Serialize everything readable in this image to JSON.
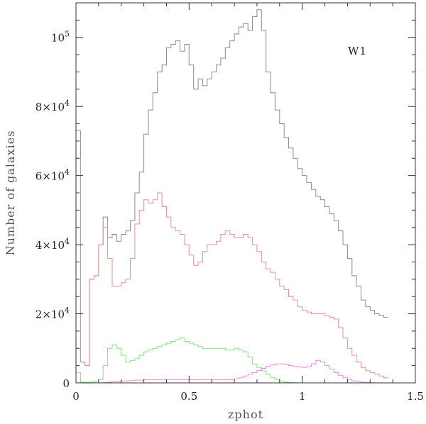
{
  "chart_data": {
    "type": "line",
    "style": "step-histogram",
    "xlabel": "zphot",
    "ylabel": "Number of galaxies",
    "annotation": "W1",
    "xlim": [
      0,
      1.5
    ],
    "ylim": [
      0,
      110000
    ],
    "x_ticks": [
      {
        "value": 0,
        "label": "0"
      },
      {
        "value": 0.5,
        "label": "0.5"
      },
      {
        "value": 1,
        "label": "1"
      },
      {
        "value": 1.5,
        "label": "1.5"
      }
    ],
    "y_ticks": [
      {
        "value": 0,
        "mant": "0",
        "exp": ""
      },
      {
        "value": 20000,
        "mant": "2×10",
        "exp": "4"
      },
      {
        "value": 40000,
        "mant": "4×10",
        "exp": "4"
      },
      {
        "value": 60000,
        "mant": "6×10",
        "exp": "4"
      },
      {
        "value": 80000,
        "mant": "8×10",
        "exp": "4"
      },
      {
        "value": 100000,
        "mant": "10",
        "exp": "5"
      }
    ],
    "bin_width": 0.02,
    "series": [
      {
        "color": "#8a8a8a",
        "values": [
          73000,
          6000,
          5000,
          30000,
          31000,
          40000,
          48000,
          42000,
          43000,
          41000,
          43000,
          44000,
          47000,
          55000,
          61000,
          72000,
          79000,
          84000,
          90000,
          92000,
          97000,
          98000,
          99000,
          96000,
          98000,
          92000,
          85000,
          88000,
          86000,
          88000,
          90000,
          92000,
          94000,
          97000,
          99000,
          101000,
          103000,
          104000,
          102000,
          106000,
          108000,
          102000,
          90000,
          84000,
          79000,
          75000,
          71000,
          68000,
          65000,
          62000,
          60000,
          58000,
          56000,
          54000,
          53000,
          51000,
          49000,
          47000,
          44000,
          40000,
          36000,
          31000,
          28000,
          24000,
          22000,
          21000,
          20000,
          19500,
          19000
        ]
      },
      {
        "color": "#ee8f8f",
        "values": [
          65000,
          6000,
          5000,
          30000,
          31000,
          40000,
          45000,
          36000,
          28000,
          28000,
          29000,
          30000,
          36000,
          46000,
          50000,
          53000,
          52000,
          53000,
          55000,
          51000,
          48000,
          45000,
          44000,
          43000,
          40000,
          37000,
          34000,
          35000,
          38000,
          40000,
          40000,
          41000,
          43000,
          44000,
          43000,
          42000,
          42000,
          43000,
          42000,
          40000,
          38000,
          35000,
          33000,
          32000,
          30000,
          28000,
          27000,
          25000,
          24000,
          22000,
          21000,
          20500,
          20000,
          20000,
          20000,
          19500,
          19000,
          18500,
          16000,
          13000,
          10000,
          8000,
          6000,
          4500,
          3500,
          3000,
          2500,
          2000,
          1500
        ]
      },
      {
        "color": "#7ce87c",
        "values": [
          3000,
          200,
          200,
          200,
          500,
          1000,
          5000,
          10000,
          11000,
          10000,
          8000,
          6000,
          6500,
          7000,
          8000,
          9000,
          9500,
          10000,
          10500,
          11000,
          11500,
          12000,
          12500,
          13000,
          12000,
          11500,
          11000,
          10500,
          10000,
          10000,
          10000,
          10000,
          10000,
          9500,
          9500,
          10000,
          9500,
          9000,
          7500,
          5500,
          4500,
          3500,
          2500,
          1500,
          1000,
          500,
          200,
          100,
          50,
          0,
          0,
          0,
          0,
          0,
          0,
          0,
          0,
          0,
          0,
          0,
          0,
          0,
          0,
          0,
          0,
          0,
          0,
          0,
          0
        ]
      },
      {
        "color": "#e08ee0",
        "values": [
          0,
          0,
          0,
          0,
          0,
          0,
          100,
          200,
          300,
          400,
          500,
          600,
          700,
          800,
          800,
          900,
          900,
          900,
          900,
          900,
          900,
          900,
          900,
          900,
          900,
          900,
          900,
          900,
          900,
          900,
          900,
          900,
          900,
          900,
          1000,
          1200,
          1500,
          2000,
          2500,
          3000,
          3600,
          4200,
          4800,
          5200,
          5500,
          5500,
          5300,
          5000,
          4800,
          4600,
          4500,
          4700,
          5500,
          6500,
          6000,
          5000,
          4000,
          3000,
          2200,
          1500,
          1000,
          600,
          400,
          200,
          100,
          50,
          0,
          0,
          0
        ]
      }
    ]
  }
}
